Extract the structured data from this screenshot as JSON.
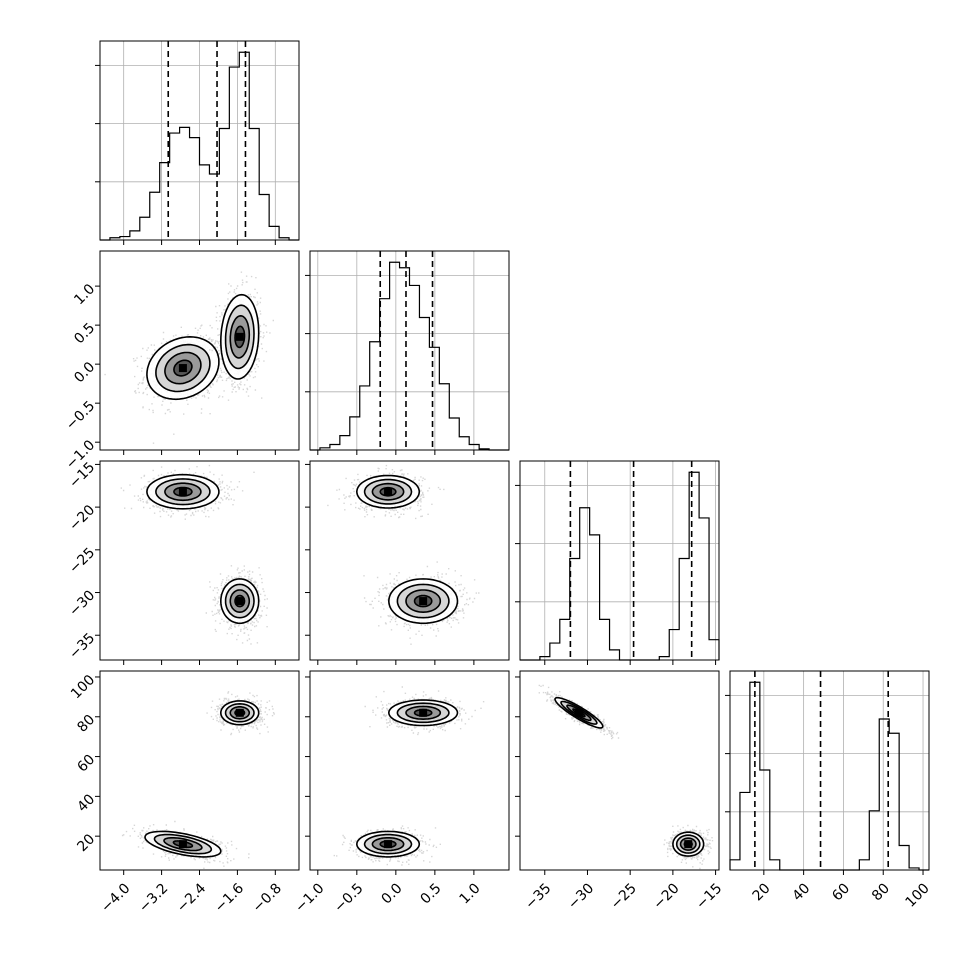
{
  "chart_data": {
    "type": "scatter",
    "subtype": "corner-plot",
    "parameters": [
      {
        "range": [
          -4.5,
          -0.3
        ],
        "ticks": [
          -4.0,
          -3.2,
          -2.4,
          -1.6,
          -0.8
        ],
        "tick_labels": [
          "−4.0",
          "−3.2",
          "−2.4",
          "−1.6",
          "−0.8"
        ],
        "quantiles": [
          -3.06,
          -2.03,
          -1.43
        ],
        "histogram": {
          "edges": [
            -4.5,
            -4.29,
            -4.08,
            -3.87,
            -3.66,
            -3.45,
            -3.24,
            -3.03,
            -2.82,
            -2.61,
            -2.4,
            -2.19,
            -1.98,
            -1.77,
            -1.56,
            -1.35,
            -1.14,
            -0.93,
            -0.72,
            -0.51,
            -0.3
          ],
          "counts": [
            0,
            2,
            3,
            8,
            20,
            42,
            68,
            94,
            99,
            90,
            66,
            58,
            98,
            152,
            165,
            98,
            40,
            12,
            2,
            0
          ]
        },
        "modes": [
          {
            "mean": -2.75,
            "sd": 0.38,
            "weight": 0.5
          },
          {
            "mean": -1.55,
            "sd": 0.2,
            "weight": 0.5
          }
        ]
      },
      {
        "range": [
          -1.1,
          1.45
        ],
        "ticks": [
          -1.0,
          -0.5,
          0.0,
          0.5,
          1.0
        ],
        "tick_labels": [
          "−1.0",
          "−0.5",
          "0.0",
          "0.5",
          "1.0"
        ],
        "quantiles": [
          -0.2,
          0.13,
          0.47
        ],
        "histogram": {
          "edges": [
            -1.1,
            -0.9725,
            -0.845,
            -0.7175,
            -0.59,
            -0.4625,
            -0.335,
            -0.2075,
            -0.08,
            0.0475,
            0.175,
            0.3025,
            0.43,
            0.5575,
            0.685,
            0.8125,
            0.94,
            1.0675,
            1.195,
            1.3225,
            1.45
          ],
          "counts": [
            0,
            2,
            5,
            13,
            30,
            58,
            98,
            137,
            170,
            165,
            149,
            120,
            93,
            60,
            29,
            12,
            5,
            1,
            0,
            0
          ]
        },
        "modes": [
          {
            "mean": -0.1,
            "sd": 0.22,
            "weight": 0.5
          },
          {
            "mean": 0.35,
            "sd": 0.2,
            "weight": 0.5
          }
        ]
      },
      {
        "range": [
          -37.9,
          -14.6
        ],
        "ticks": [
          -35,
          -30,
          -25,
          -20,
          -15
        ],
        "tick_labels": [
          "−35",
          "−30",
          "−25",
          "−20",
          "−15"
        ],
        "quantiles": [
          -32.0,
          -24.6,
          -17.8
        ],
        "histogram": {
          "edges": [
            -37.9,
            -36.735,
            -35.57,
            -34.405,
            -33.24,
            -32.075,
            -30.91,
            -29.745,
            -28.58,
            -27.415,
            -26.25,
            -25.085,
            -23.92,
            -22.755,
            -21.59,
            -20.425,
            -19.26,
            -18.095,
            -16.93,
            -15.765,
            -14.6
          ],
          "counts": [
            0,
            0,
            2,
            10,
            24,
            60,
            90,
            74,
            24,
            6,
            0,
            0,
            0,
            0,
            2,
            18,
            60,
            111,
            84,
            12
          ]
        },
        "modes": [
          {
            "mean": -31.0,
            "sd": 1.1,
            "weight": 0.5
          },
          {
            "mean": -18.2,
            "sd": 0.9,
            "weight": 0.5
          }
        ]
      },
      {
        "range": [
          3,
          103
        ],
        "ticks": [
          20,
          40,
          60,
          80,
          100
        ],
        "tick_labels": [
          "20",
          "40",
          "60",
          "80",
          "100"
        ],
        "quantiles": [
          15.5,
          48.5,
          82.5
        ],
        "histogram": {
          "edges": [
            3,
            8,
            13,
            18,
            23,
            28,
            33,
            38,
            43,
            48,
            53,
            58,
            63,
            68,
            73,
            78,
            83,
            88,
            93,
            98,
            103
          ],
          "counts": [
            5,
            38,
            92,
            49,
            5,
            0,
            0,
            0,
            0,
            0,
            0,
            0,
            0,
            5,
            29,
            74,
            67,
            12,
            1,
            0
          ]
        },
        "modes": [
          {
            "mean": 16,
            "sd": 2.7,
            "weight": 0.5
          },
          {
            "mean": 82,
            "sd": 2.7,
            "weight": 0.5
          }
        ]
      }
    ],
    "y_ticks": {
      "1": {
        "ticks": [
          -1.0,
          -0.5,
          0.0,
          0.5,
          1.0
        ],
        "tick_labels": [
          "−1.0",
          "−0.5",
          "0.0",
          "0.5",
          "1.0"
        ]
      },
      "2": {
        "ticks": [
          -35,
          -30,
          -25,
          -20,
          -15
        ],
        "tick_labels": [
          "−35",
          "−30",
          "−25",
          "−20",
          "−15"
        ]
      },
      "3": {
        "ticks": [
          20,
          40,
          60,
          80,
          100
        ],
        "tick_labels": [
          "20",
          "40",
          "60",
          "80",
          "100"
        ]
      }
    },
    "clusters_2d": [
      {
        "i": 0,
        "j": 1,
        "blobs": [
          {
            "mx": -2.75,
            "my": -0.05,
            "sx": 0.38,
            "sy": 0.2,
            "rho": 0.2
          },
          {
            "mx": -1.55,
            "my": 0.35,
            "sx": 0.2,
            "sy": 0.27,
            "rho": 0.1
          }
        ]
      },
      {
        "i": 0,
        "j": 2,
        "blobs": [
          {
            "mx": -2.75,
            "my": -18.2,
            "sx": 0.38,
            "sy": 1.0,
            "rho": 0.0
          },
          {
            "mx": -1.55,
            "my": -31.0,
            "sx": 0.2,
            "sy": 1.3,
            "rho": 0.0
          }
        ]
      },
      {
        "i": 1,
        "j": 2,
        "blobs": [
          {
            "mx": -0.1,
            "my": -18.2,
            "sx": 0.2,
            "sy": 0.95,
            "rho": 0.0
          },
          {
            "mx": 0.35,
            "my": -31.0,
            "sx": 0.22,
            "sy": 1.3,
            "rho": 0.0
          }
        ]
      },
      {
        "i": 0,
        "j": 3,
        "blobs": [
          {
            "mx": -2.75,
            "my": 16,
            "sx": 0.4,
            "sy": 3.2,
            "rho": -0.55
          },
          {
            "mx": -1.55,
            "my": 82,
            "sx": 0.2,
            "sy": 3.0,
            "rho": 0.0
          }
        ]
      },
      {
        "i": 1,
        "j": 3,
        "blobs": [
          {
            "mx": -0.1,
            "my": 16,
            "sx": 0.2,
            "sy": 3.2,
            "rho": 0.0
          },
          {
            "mx": 0.35,
            "my": 82,
            "sx": 0.22,
            "sy": 3.2,
            "rho": 0.0
          }
        ]
      },
      {
        "i": 2,
        "j": 3,
        "blobs": [
          {
            "mx": -31.0,
            "my": 82,
            "sx": 1.4,
            "sy": 3.8,
            "rho": -0.9
          },
          {
            "mx": -18.2,
            "my": 16,
            "sx": 0.9,
            "sy": 3.0,
            "rho": 0.0
          }
        ]
      }
    ],
    "grid": true,
    "contour_levels_sigma": [
      0.5,
      1.0,
      1.5,
      2.0
    ]
  }
}
